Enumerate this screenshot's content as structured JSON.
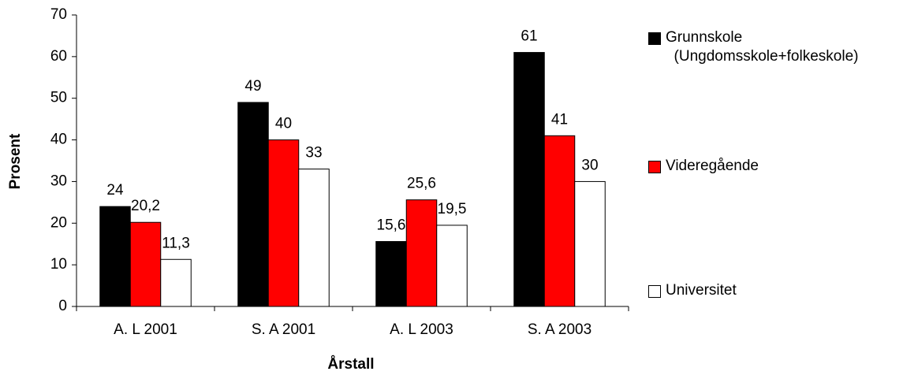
{
  "chart_data": {
    "type": "bar",
    "categories": [
      "A. L 2001",
      "S. A 2001",
      "A. L 2003",
      "S. A 2003"
    ],
    "series": [
      {
        "name": "Grunnskole\n  (Ungdomsskole+folkeskole)",
        "color": "#000000",
        "values": [
          24,
          49,
          15.6,
          61
        ],
        "value_labels": [
          "24",
          "49",
          "15,6",
          "61"
        ]
      },
      {
        "name": "Videregående",
        "color": "#ff0000",
        "values": [
          20.2,
          40,
          25.6,
          41
        ],
        "value_labels": [
          "20,2",
          "40",
          "25,6",
          "41"
        ]
      },
      {
        "name": "Universitet",
        "color": "#ffffff",
        "values": [
          11.3,
          33,
          19.5,
          30
        ],
        "value_labels": [
          "11,3",
          "33",
          "19,5",
          "30"
        ]
      }
    ],
    "ylabel": "Prosent",
    "xlabel": "Årstall",
    "ylim": [
      0,
      70
    ],
    "yticks": [
      0,
      10,
      20,
      30,
      40,
      50,
      60,
      70
    ],
    "grid": false,
    "legend": "right"
  }
}
